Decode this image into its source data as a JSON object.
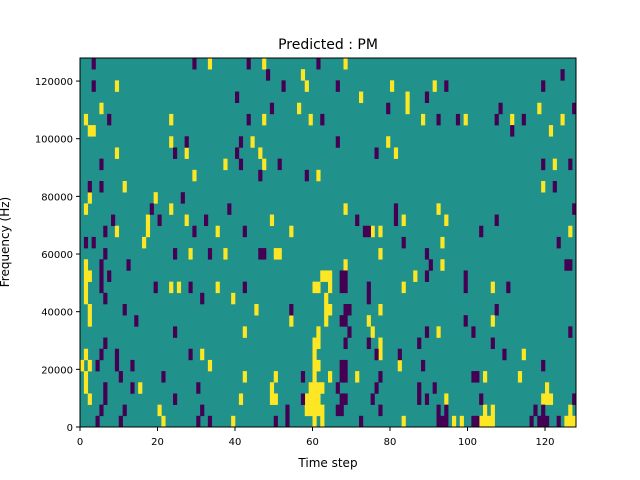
{
  "chart_data": {
    "type": "heatmap",
    "title": "Predicted : PM",
    "xlabel": "Time step",
    "ylabel": "Frequency (Hz)",
    "xlim": [
      0,
      128
    ],
    "ylim": [
      0,
      128000
    ],
    "xticks": [
      0,
      20,
      40,
      60,
      80,
      100,
      120
    ],
    "yticks": [
      0,
      20000,
      40000,
      60000,
      80000,
      100000,
      120000
    ],
    "n_time_steps": 128,
    "n_freq_bins": 33,
    "grid": false,
    "colors": {
      "background": "#21918c",
      "high": "#fde725",
      "low": "#440154"
    },
    "value_legend": {
      "background": 0.5,
      "high": 1,
      "low": 0
    },
    "high_cells_by_bin": [
      [
        32,
        [
          33,
          47,
          68
        ]
      ],
      [
        31,
        [
          57
        ]
      ],
      [
        30,
        [
          9,
          58,
          80,
          91
        ]
      ],
      [
        29,
        [
          72,
          84
        ]
      ],
      [
        28,
        [
          5,
          56,
          84,
          118
        ]
      ],
      [
        27,
        [
          1,
          23,
          47,
          59,
          88,
          99,
          111,
          124
        ]
      ],
      [
        26,
        [
          2,
          3,
          121
        ]
      ],
      [
        25,
        [
          23,
          44,
          79
        ]
      ],
      [
        24,
        [
          9,
          27,
          46,
          81
        ]
      ],
      [
        23,
        [
          37,
          47,
          122
        ]
      ],
      [
        22,
        [
          29,
          61
        ]
      ],
      [
        21,
        [
          11,
          119
        ]
      ],
      [
        20,
        [
          2,
          19
        ]
      ],
      [
        19,
        [
          1,
          23,
          68,
          92
        ]
      ],
      [
        18,
        [
          17,
          27,
          49,
          83,
          94
        ]
      ],
      [
        17,
        [
          9,
          17,
          35,
          54,
          75,
          77,
          126
        ]
      ],
      [
        16,
        [
          16,
          93
        ]
      ],
      [
        15,
        [
          28,
          37,
          50,
          51,
          77
        ]
      ],
      [
        14,
        [
          1,
          68,
          93
        ]
      ],
      [
        13,
        [
          1,
          2,
          62,
          63,
          64,
          86
        ]
      ],
      [
        12,
        [
          1,
          23,
          25,
          35,
          60,
          61,
          64,
          83,
          106
        ]
      ],
      [
        11,
        [
          1,
          39,
          63
        ]
      ],
      [
        10,
        [
          2,
          45,
          63,
          64,
          77
        ]
      ],
      [
        9,
        [
          2,
          54,
          63,
          74,
          106
        ]
      ],
      [
        8,
        [
          42,
          61,
          75,
          92
        ]
      ],
      [
        7,
        [
          60,
          61,
          77
        ]
      ],
      [
        6,
        [
          1,
          31,
          60,
          77,
          114
        ]
      ],
      [
        5,
        [
          0,
          2,
          33,
          60,
          61,
          82
        ]
      ],
      [
        4,
        [
          1,
          42,
          50,
          60,
          64,
          71,
          104,
          113
        ]
      ],
      [
        3,
        [
          1,
          15,
          49,
          59,
          60,
          61,
          62,
          120
        ]
      ],
      [
        2,
        [
          2,
          41,
          49,
          50,
          58,
          59,
          60,
          61,
          94,
          119,
          120,
          121
        ]
      ],
      [
        1,
        [
          20,
          58,
          59,
          60,
          61,
          62,
          104,
          106,
          126
        ]
      ],
      [
        0,
        [
          21,
          39,
          60,
          62,
          83,
          96,
          98,
          103,
          104,
          105,
          106,
          125,
          126,
          127
        ]
      ]
    ],
    "low_cells_by_bin": [
      [
        32,
        [
          3,
          29,
          43,
          61
        ]
      ],
      [
        31,
        [
          48,
          124
        ]
      ],
      [
        30,
        [
          3,
          52,
          66,
          94,
          119
        ]
      ],
      [
        29,
        [
          40,
          89
        ]
      ],
      [
        28,
        [
          49,
          79,
          108,
          127
        ]
      ],
      [
        27,
        [
          7,
          43,
          62,
          92,
          97,
          107,
          114
        ]
      ],
      [
        26,
        [
          111
        ]
      ],
      [
        25,
        [
          27,
          41,
          66
        ]
      ],
      [
        24,
        [
          24,
          40,
          76
        ]
      ],
      [
        23,
        [
          5,
          41,
          51,
          119,
          126
        ]
      ],
      [
        22,
        [
          46,
          58
        ]
      ],
      [
        21,
        [
          2,
          5,
          122
        ]
      ],
      [
        20,
        [
          26
        ]
      ],
      [
        19,
        [
          18,
          38,
          81,
          127
        ]
      ],
      [
        18,
        [
          8,
          20,
          32,
          71,
          81,
          107
        ]
      ],
      [
        17,
        [
          6,
          29,
          42,
          73,
          74,
          103
        ]
      ],
      [
        16,
        [
          1,
          3,
          83,
          123
        ]
      ],
      [
        15,
        [
          6,
          24,
          33,
          46,
          47,
          89
        ]
      ],
      [
        14,
        [
          5,
          12,
          90,
          125,
          126
        ]
      ],
      [
        13,
        [
          5,
          7,
          67,
          68,
          89,
          99
        ]
      ],
      [
        12,
        [
          5,
          19,
          28,
          42,
          67,
          68,
          74,
          99,
          110
        ]
      ],
      [
        11,
        [
          6,
          31,
          74
        ]
      ],
      [
        10,
        [
          11,
          54,
          68,
          69,
          107
        ]
      ],
      [
        9,
        [
          14,
          67,
          68,
          99
        ]
      ],
      [
        8,
        [
          24,
          69,
          89,
          101,
          126
        ]
      ],
      [
        7,
        [
          6,
          68,
          74,
          87,
          106
        ]
      ],
      [
        6,
        [
          5,
          9,
          28,
          76,
          82,
          109
        ]
      ],
      [
        5,
        [
          4,
          9,
          13,
          67,
          68,
          88,
          119
        ]
      ],
      [
        4,
        [
          10,
          21,
          57,
          67,
          68,
          77,
          101,
          102
        ]
      ],
      [
        3,
        [
          6,
          13,
          30,
          66,
          76,
          87,
          91
        ]
      ],
      [
        2,
        [
          6,
          24,
          57,
          67,
          68,
          75,
          87,
          89,
          103,
          127
        ]
      ],
      [
        1,
        [
          5,
          11,
          31,
          53,
          66,
          67,
          77,
          92,
          94,
          117,
          119
        ]
      ],
      [
        0,
        [
          4,
          10,
          30,
          33,
          50,
          53,
          72,
          92,
          93,
          94,
          101,
          102,
          116,
          118,
          119,
          120,
          123
        ]
      ]
    ]
  }
}
